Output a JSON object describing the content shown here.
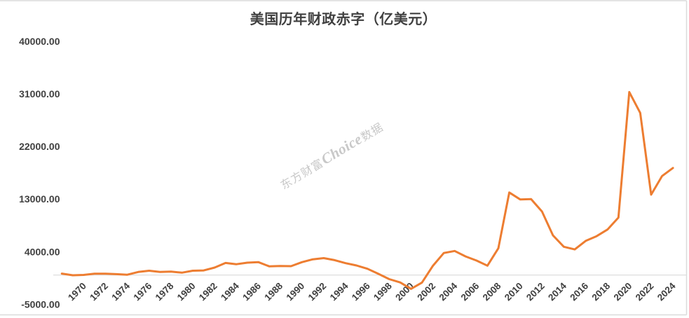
{
  "chart_data": {
    "type": "line",
    "title": "美国历年财政赤字（亿美元）",
    "xlabel": "",
    "ylabel": "",
    "ylim": [
      -5000,
      40000
    ],
    "ytick_step": 9000,
    "yticks": [
      40000,
      31000,
      22000,
      13000,
      4000,
      -5000
    ],
    "ytick_labels": [
      "40000.00",
      "31000.00",
      "22000.00",
      "13000.00",
      "4000.00",
      "-5000.00"
    ],
    "xtick_labels": [
      "1970",
      "1972",
      "1974",
      "1976",
      "1978",
      "1980",
      "1982",
      "1984",
      "1986",
      "1988",
      "1990",
      "1992",
      "1994",
      "1996",
      "1998",
      "2000",
      "2002",
      "2004",
      "2006",
      "2008",
      "2010",
      "2012",
      "2014",
      "2016",
      "2018",
      "2020",
      "2022",
      "2024"
    ],
    "grid": "zero-line-only",
    "legend": "none",
    "series": [
      {
        "x": [
          1968,
          1969,
          1970,
          1971,
          1972,
          1973,
          1974,
          1975,
          1976,
          1977,
          1978,
          1979,
          1980,
          1981,
          1982,
          1983,
          1984,
          1985,
          1986,
          1987,
          1988,
          1989,
          1990,
          1991,
          1992,
          1993,
          1994,
          1995,
          1996,
          1997,
          1998,
          1999,
          2000,
          2001,
          2002,
          2003,
          2004,
          2005,
          2006,
          2007,
          2008,
          2009,
          2010,
          2011,
          2012,
          2013,
          2014,
          2015,
          2016,
          2017,
          2018,
          2019,
          2020,
          2021,
          2022,
          2023,
          2024
        ],
        "values": [
          252,
          -32,
          28,
          230,
          234,
          149,
          61,
          532,
          737,
          537,
          592,
          407,
          738,
          790,
          1280,
          2078,
          1854,
          2123,
          2212,
          1497,
          1552,
          1526,
          2210,
          2692,
          2903,
          2551,
          2032,
          1640,
          1074,
          219,
          -693,
          -1256,
          -2362,
          -1282,
          1578,
          3776,
          4127,
          3183,
          2482,
          1607,
          4586,
          14127,
          12944,
          12996,
          10870,
          6795,
          4846,
          4385,
          5847,
          6654,
          7790,
          9844,
          31319,
          27753,
          13754,
          16952,
          18330
        ]
      }
    ]
  },
  "watermark": {
    "prefix": "东方财富",
    "brand": "Choice",
    "suffix": "数据"
  },
  "colors": {
    "line": "#ED7D31",
    "text": "#404040",
    "grid": "#D9D9D9",
    "frame": "#DBDBDB",
    "watermark": "#C8C8C8",
    "background": "#FFFFFF"
  }
}
